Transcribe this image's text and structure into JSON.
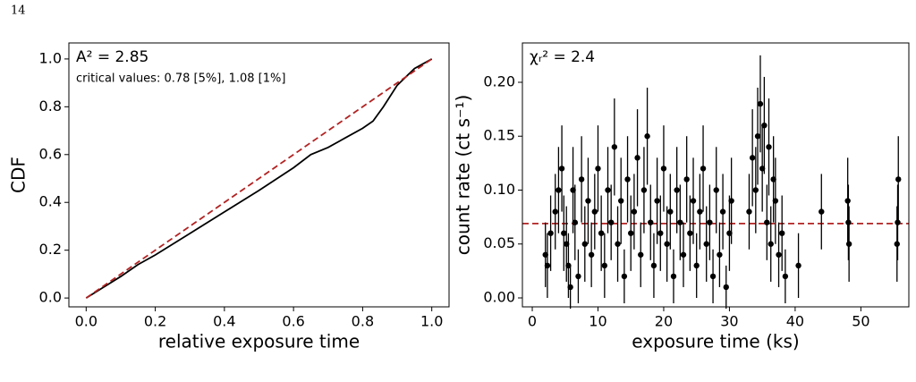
{
  "page_number": "14",
  "chart_data": [
    {
      "type": "line",
      "xlabel": "relative exposure time",
      "ylabel": "CDF",
      "annotations": [
        "A² = 2.85",
        "critical values: 0.78 [5%], 1.08 [1%]"
      ],
      "xlim": [
        -0.05,
        1.05
      ],
      "ylim": [
        -0.037,
        1.067
      ],
      "xticks": [
        {
          "value": 0,
          "label": "0.0"
        },
        {
          "value": 0.2,
          "label": "0.2"
        },
        {
          "value": 0.4,
          "label": "0.4"
        },
        {
          "value": 0.6,
          "label": "0.6"
        },
        {
          "value": 0.8,
          "label": "0.8"
        },
        {
          "value": 1,
          "label": "1.0"
        }
      ],
      "yticks": [
        {
          "value": 0,
          "label": "0.0"
        },
        {
          "value": 0.2,
          "label": "0.2"
        },
        {
          "value": 0.4,
          "label": "0.4"
        },
        {
          "value": 0.6,
          "label": "0.6"
        },
        {
          "value": 0.8,
          "label": "0.8"
        },
        {
          "value": 1,
          "label": "1.0"
        }
      ],
      "series": [
        {
          "color": "#000000",
          "linestyle": "solid",
          "x": [
            0,
            0.05,
            0.1,
            0.15,
            0.2,
            0.3,
            0.4,
            0.5,
            0.6,
            0.65,
            0.7,
            0.75,
            0.8,
            0.83,
            0.86,
            0.9,
            0.95,
            1.0
          ],
          "values": [
            0,
            0.045,
            0.09,
            0.14,
            0.18,
            0.27,
            0.36,
            0.45,
            0.545,
            0.6,
            0.63,
            0.67,
            0.71,
            0.74,
            0.8,
            0.89,
            0.96,
            1.0
          ]
        },
        {
          "color": "#b22222",
          "linestyle": "dashed",
          "x": [
            0,
            1
          ],
          "values": [
            0,
            1
          ]
        }
      ]
    },
    {
      "type": "errorbar",
      "xlabel": "exposure time (ks)",
      "ylabel": "count rate (ct s⁻¹)",
      "annotations": [
        "χᵣ² = 2.4"
      ],
      "xlim": [
        -1.5,
        57.3
      ],
      "ylim": [
        -0.0083,
        0.2365
      ],
      "xticks": [
        0,
        10,
        20,
        30,
        40,
        50
      ],
      "yticks": [
        {
          "value": 0,
          "label": "0.00"
        },
        {
          "value": 0.05,
          "label": "0.05"
        },
        {
          "value": 0.1,
          "label": "0.10"
        },
        {
          "value": 0.15,
          "label": "0.15"
        },
        {
          "value": 0.2,
          "label": "0.20"
        }
      ],
      "color": "#000000",
      "x": [
        2.0,
        2.3,
        2.8,
        3.5,
        4.0,
        4.5,
        4.8,
        5.2,
        5.5,
        5.8,
        6.2,
        6.5,
        7.0,
        7.5,
        8.0,
        8.5,
        9.0,
        9.5,
        10.0,
        10.5,
        11.0,
        11.5,
        12.0,
        12.5,
        13.0,
        13.5,
        14.0,
        14.5,
        15.0,
        15.5,
        16.0,
        16.5,
        17.0,
        17.5,
        18.0,
        18.5,
        19.0,
        19.5,
        20.0,
        20.5,
        21.0,
        21.5,
        22.0,
        22.5,
        23.0,
        23.5,
        24.0,
        24.5,
        25.0,
        25.5,
        26.0,
        26.5,
        27.0,
        27.5,
        28.0,
        28.5,
        29.0,
        29.5,
        30.0,
        30.3,
        33.0,
        33.5,
        34.0,
        34.3,
        34.7,
        35.0,
        35.3,
        35.7,
        36.0,
        36.3,
        36.7,
        37.0,
        37.5,
        38.0,
        38.5,
        40.5,
        44.0,
        48.0,
        48.1,
        48.2,
        55.5,
        55.6,
        55.7
      ],
      "values": [
        0.04,
        0.03,
        0.06,
        0.08,
        0.1,
        0.12,
        0.06,
        0.05,
        0.03,
        0.01,
        0.1,
        0.07,
        0.02,
        0.11,
        0.05,
        0.09,
        0.04,
        0.08,
        0.12,
        0.06,
        0.03,
        0.1,
        0.07,
        0.14,
        0.05,
        0.09,
        0.02,
        0.11,
        0.06,
        0.08,
        0.13,
        0.04,
        0.1,
        0.15,
        0.07,
        0.03,
        0.09,
        0.06,
        0.12,
        0.05,
        0.08,
        0.02,
        0.1,
        0.07,
        0.04,
        0.11,
        0.06,
        0.09,
        0.03,
        0.08,
        0.12,
        0.05,
        0.07,
        0.02,
        0.1,
        0.04,
        0.08,
        0.01,
        0.06,
        0.09,
        0.08,
        0.13,
        0.1,
        0.15,
        0.18,
        0.12,
        0.16,
        0.07,
        0.14,
        0.05,
        0.11,
        0.09,
        0.04,
        0.06,
        0.02,
        0.03,
        0.08,
        0.09,
        0.07,
        0.05,
        0.05,
        0.07,
        0.11
      ],
      "errors": [
        0.03,
        0.03,
        0.035,
        0.035,
        0.04,
        0.04,
        0.035,
        0.035,
        0.03,
        0.02,
        0.04,
        0.035,
        0.025,
        0.04,
        0.035,
        0.04,
        0.03,
        0.035,
        0.04,
        0.035,
        0.03,
        0.04,
        0.035,
        0.045,
        0.035,
        0.04,
        0.025,
        0.04,
        0.035,
        0.035,
        0.045,
        0.03,
        0.04,
        0.045,
        0.035,
        0.03,
        0.04,
        0.035,
        0.04,
        0.035,
        0.035,
        0.025,
        0.04,
        0.035,
        0.03,
        0.04,
        0.035,
        0.04,
        0.03,
        0.035,
        0.04,
        0.035,
        0.035,
        0.025,
        0.04,
        0.03,
        0.035,
        0.02,
        0.035,
        0.04,
        0.035,
        0.045,
        0.04,
        0.045,
        0.045,
        0.04,
        0.045,
        0.035,
        0.045,
        0.035,
        0.04,
        0.04,
        0.03,
        0.035,
        0.025,
        0.03,
        0.035,
        0.04,
        0.035,
        0.035,
        0.035,
        0.035,
        0.04
      ],
      "hline": {
        "value": 0.069,
        "color": "#b22222",
        "linestyle": "dashed"
      }
    }
  ]
}
